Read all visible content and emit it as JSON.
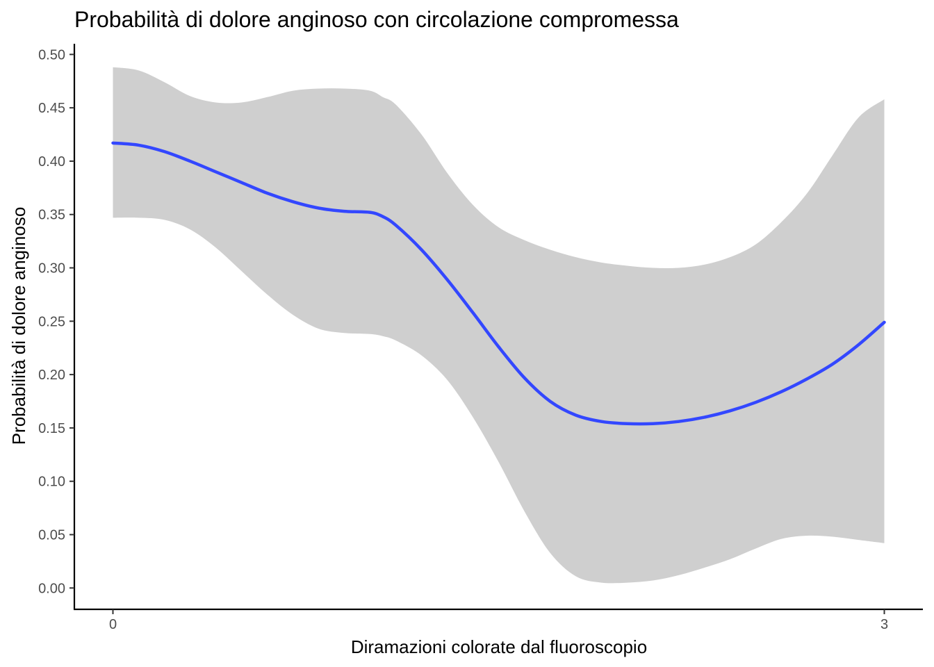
{
  "chart_data": {
    "type": "line",
    "title": "Probabilità di  dolore anginoso con circolazione compromessa",
    "xlabel": "Diramazioni colorate dal fluoroscopio",
    "ylabel": "Probabilità di dolore anginoso",
    "xlim": [
      -0.15,
      3.15
    ],
    "ylim": [
      -0.02,
      0.51
    ],
    "x_ticks": [
      {
        "value": 0,
        "label": "0"
      },
      {
        "value": 3,
        "label": "3"
      }
    ],
    "y_ticks": [
      {
        "value": 0.0,
        "label": "0.00"
      },
      {
        "value": 0.05,
        "label": "0.05"
      },
      {
        "value": 0.1,
        "label": "0.10"
      },
      {
        "value": 0.15,
        "label": "0.15"
      },
      {
        "value": 0.2,
        "label": "0.20"
      },
      {
        "value": 0.25,
        "label": "0.25"
      },
      {
        "value": 0.3,
        "label": "0.30"
      },
      {
        "value": 0.35,
        "label": "0.35"
      },
      {
        "value": 0.4,
        "label": "0.40"
      },
      {
        "value": 0.45,
        "label": "0.45"
      },
      {
        "value": 0.5,
        "label": "0.50"
      }
    ],
    "grid": false,
    "series": [
      {
        "type": "line",
        "color": "#3347ff",
        "x": [
          0,
          0.1,
          0.2,
          0.3,
          0.4,
          0.5,
          0.6,
          0.7,
          0.8,
          0.9,
          1.0,
          1.05,
          1.1,
          1.2,
          1.3,
          1.4,
          1.5,
          1.6,
          1.7,
          1.8,
          1.9,
          2.0,
          2.1,
          2.2,
          2.3,
          2.4,
          2.5,
          2.6,
          2.7,
          2.8,
          2.9,
          3.0
        ],
        "y": [
          0.417,
          0.415,
          0.409,
          0.4,
          0.39,
          0.38,
          0.37,
          0.362,
          0.356,
          0.353,
          0.352,
          0.348,
          0.34,
          0.317,
          0.289,
          0.258,
          0.226,
          0.197,
          0.175,
          0.162,
          0.156,
          0.154,
          0.154,
          0.156,
          0.16,
          0.166,
          0.174,
          0.184,
          0.196,
          0.21,
          0.228,
          0.249
        ]
      },
      {
        "type": "band",
        "color": "#cfcfcf",
        "x": [
          0,
          0.1,
          0.2,
          0.3,
          0.4,
          0.5,
          0.6,
          0.7,
          0.8,
          0.9,
          1.0,
          1.05,
          1.1,
          1.2,
          1.3,
          1.4,
          1.5,
          1.6,
          1.7,
          1.8,
          1.9,
          2.0,
          2.1,
          2.2,
          2.3,
          2.4,
          2.5,
          2.6,
          2.7,
          2.8,
          2.9,
          3.0
        ],
        "ymin": [
          0.347,
          0.347,
          0.345,
          0.336,
          0.319,
          0.297,
          0.275,
          0.256,
          0.243,
          0.239,
          0.238,
          0.236,
          0.232,
          0.218,
          0.195,
          0.16,
          0.118,
          0.072,
          0.033,
          0.011,
          0.005,
          0.005,
          0.007,
          0.012,
          0.019,
          0.027,
          0.037,
          0.046,
          0.049,
          0.048,
          0.045,
          0.042
        ],
        "ymax": [
          0.488,
          0.485,
          0.474,
          0.461,
          0.455,
          0.455,
          0.46,
          0.466,
          0.468,
          0.468,
          0.466,
          0.46,
          0.453,
          0.425,
          0.389,
          0.359,
          0.338,
          0.326,
          0.317,
          0.31,
          0.305,
          0.302,
          0.3,
          0.3,
          0.303,
          0.31,
          0.322,
          0.343,
          0.37,
          0.406,
          0.441,
          0.458
        ]
      }
    ]
  }
}
